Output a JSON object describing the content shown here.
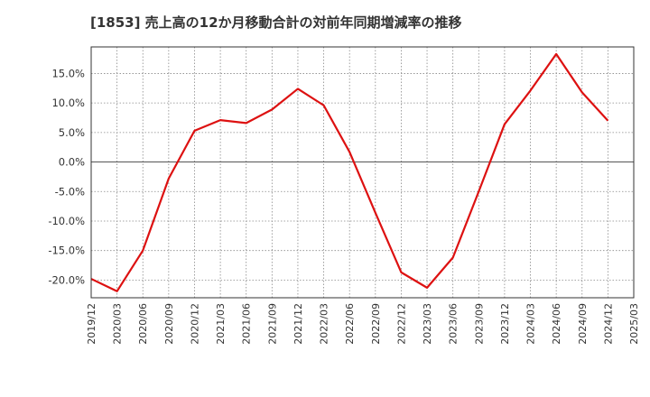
{
  "chart_data": {
    "type": "line",
    "title": "[1853]  売上高の12か月移動合計の対前年同期増減率の推移",
    "xlabel": "",
    "ylabel": "",
    "ylim": [
      -23,
      19.5
    ],
    "yticks": [
      -20,
      -15,
      -10,
      -5,
      0,
      5,
      10,
      15
    ],
    "ytick_labels": [
      "-20.0%",
      "-15.0%",
      "-10.0%",
      "-5.0%",
      "0.0%",
      "5.0%",
      "10.0%",
      "15.0%"
    ],
    "x_tick_labels": [
      "2019/12",
      "2020/03",
      "2020/06",
      "2020/09",
      "2020/12",
      "2021/03",
      "2021/06",
      "2021/09",
      "2021/12",
      "2022/03",
      "2022/06",
      "2022/09",
      "2022/12",
      "2023/03",
      "2023/06",
      "2023/09",
      "2023/12",
      "2024/03",
      "2024/06",
      "2024/09",
      "2024/12",
      "2025/03"
    ],
    "grid": true,
    "series": [
      {
        "name": "売上高の12か月移動合計の対前年同期増減率",
        "color": "#dd1111",
        "x": [
          "2019/12",
          "2020/03",
          "2020/06",
          "2020/09",
          "2020/12",
          "2021/03",
          "2021/06",
          "2021/09",
          "2021/12",
          "2022/03",
          "2022/06",
          "2022/09",
          "2022/12",
          "2023/03",
          "2023/06",
          "2023/09",
          "2023/12",
          "2024/03",
          "2024/06",
          "2024/09",
          "2024/12"
        ],
        "values": [
          -19.8,
          -21.9,
          -15.0,
          -2.8,
          5.3,
          7.1,
          6.6,
          8.9,
          12.4,
          9.6,
          1.7,
          -8.6,
          -18.7,
          -21.3,
          -16.2,
          -5.0,
          6.4,
          12.1,
          18.3,
          11.8,
          7.0
        ]
      }
    ]
  }
}
